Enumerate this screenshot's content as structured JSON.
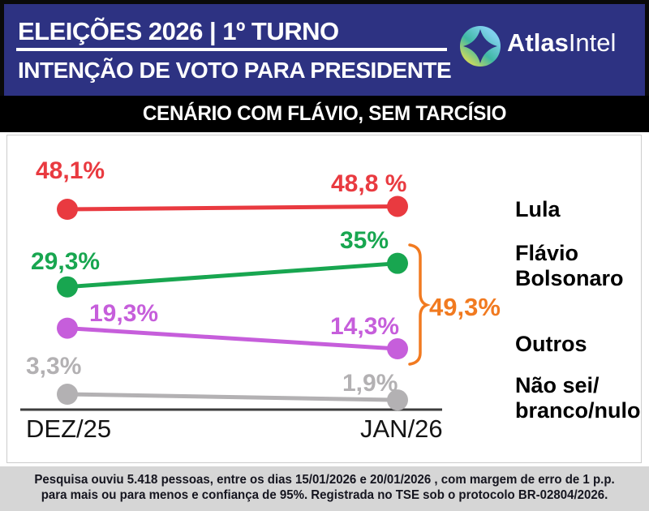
{
  "header": {
    "title": "ELEIÇÕES 2026 | 1º TURNO",
    "subtitle": "INTENÇÃO DE VOTO PARA PRESIDENTE",
    "background_color": "#2d3282",
    "brand": {
      "bold": "Atlas",
      "light": "Intel"
    }
  },
  "scenario": {
    "label": "CENÁRIO COM FLÁVIO, SEM TARCÍSIO",
    "background_color": "#000000"
  },
  "chart_data": {
    "type": "line",
    "subtype": "slope",
    "title": "CENÁRIO COM FLÁVIO, SEM TARCÍSIO",
    "categories": [
      "DEZ/25",
      "JAN/26"
    ],
    "series": [
      {
        "name": "Lula",
        "color": "#e93a40",
        "values": [
          48.1,
          48.8
        ],
        "point_labels": [
          "48,1%",
          "48,8 %"
        ]
      },
      {
        "name": "Flávio Bolsonaro",
        "color": "#18a650",
        "values": [
          29.3,
          35
        ],
        "point_labels": [
          "29,3%",
          "35%"
        ]
      },
      {
        "name": "Outros",
        "color": "#c65edb",
        "values": [
          19.3,
          14.3
        ],
        "point_labels": [
          "19,3%",
          "14,3%"
        ]
      },
      {
        "name": "Não sei/branco/nulo",
        "color": "#b3b1b3",
        "values": [
          3.3,
          1.9
        ],
        "point_labels": [
          "3,3%",
          "1,9%"
        ]
      }
    ],
    "annotation": {
      "label": "49,3%",
      "color": "#f17a20"
    },
    "legend_position": "right",
    "grid": false
  },
  "legend": {
    "items": [
      {
        "lines": [
          "Lula"
        ]
      },
      {
        "lines": [
          "Flávio",
          "Bolsonaro"
        ]
      },
      {
        "lines": [
          "Outros"
        ]
      },
      {
        "lines": [
          "Não sei/",
          "branco/nulo"
        ]
      }
    ]
  },
  "footer": {
    "line1": "Pesquisa ouviu 5.418 pessoas, entre os dias 15/01/2026 e 20/01/2026 , com margem de erro de 1 p.p.",
    "line2": "para mais ou para menos e confiança de 95%. Registrada no TSE sob o protocolo BR-02804/2026.",
    "background_color": "#d6d6d6"
  }
}
